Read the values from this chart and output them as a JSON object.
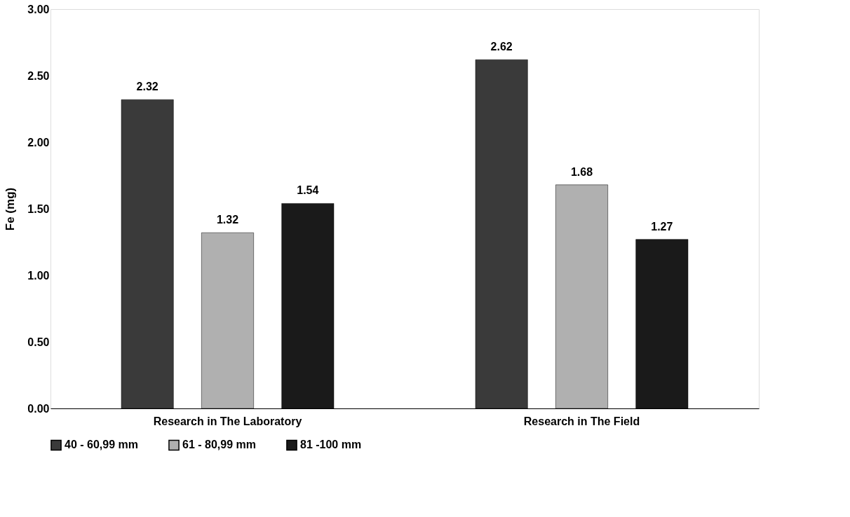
{
  "chart_data": {
    "type": "bar",
    "ylabel": "Fe (mg)",
    "categories": [
      "Research in The Laboratory",
      "Research in The Field"
    ],
    "series": [
      {
        "name": "40 - 60,99 mm",
        "color": "#3a3a3a",
        "values": [
          2.32,
          2.62
        ]
      },
      {
        "name": "61 - 80,99 mm",
        "color": "#b0b0b0",
        "values": [
          1.32,
          1.68
        ]
      },
      {
        "name": "81 -100 mm",
        "color": "#1a1a1a",
        "values": [
          1.54,
          1.27
        ]
      }
    ],
    "ylim": [
      0,
      3
    ],
    "yticks": [
      {
        "value": 0,
        "label": "0.00"
      },
      {
        "value": 0.5,
        "label": "0.50"
      },
      {
        "value": 1,
        "label": "1.00"
      },
      {
        "value": 1.5,
        "label": "1.50"
      },
      {
        "value": 2,
        "label": "2.00"
      },
      {
        "value": 2.5,
        "label": "2.50"
      },
      {
        "value": 3,
        "label": "3.00"
      }
    ],
    "data_labels": true,
    "legend": "bottom",
    "grid": false
  }
}
